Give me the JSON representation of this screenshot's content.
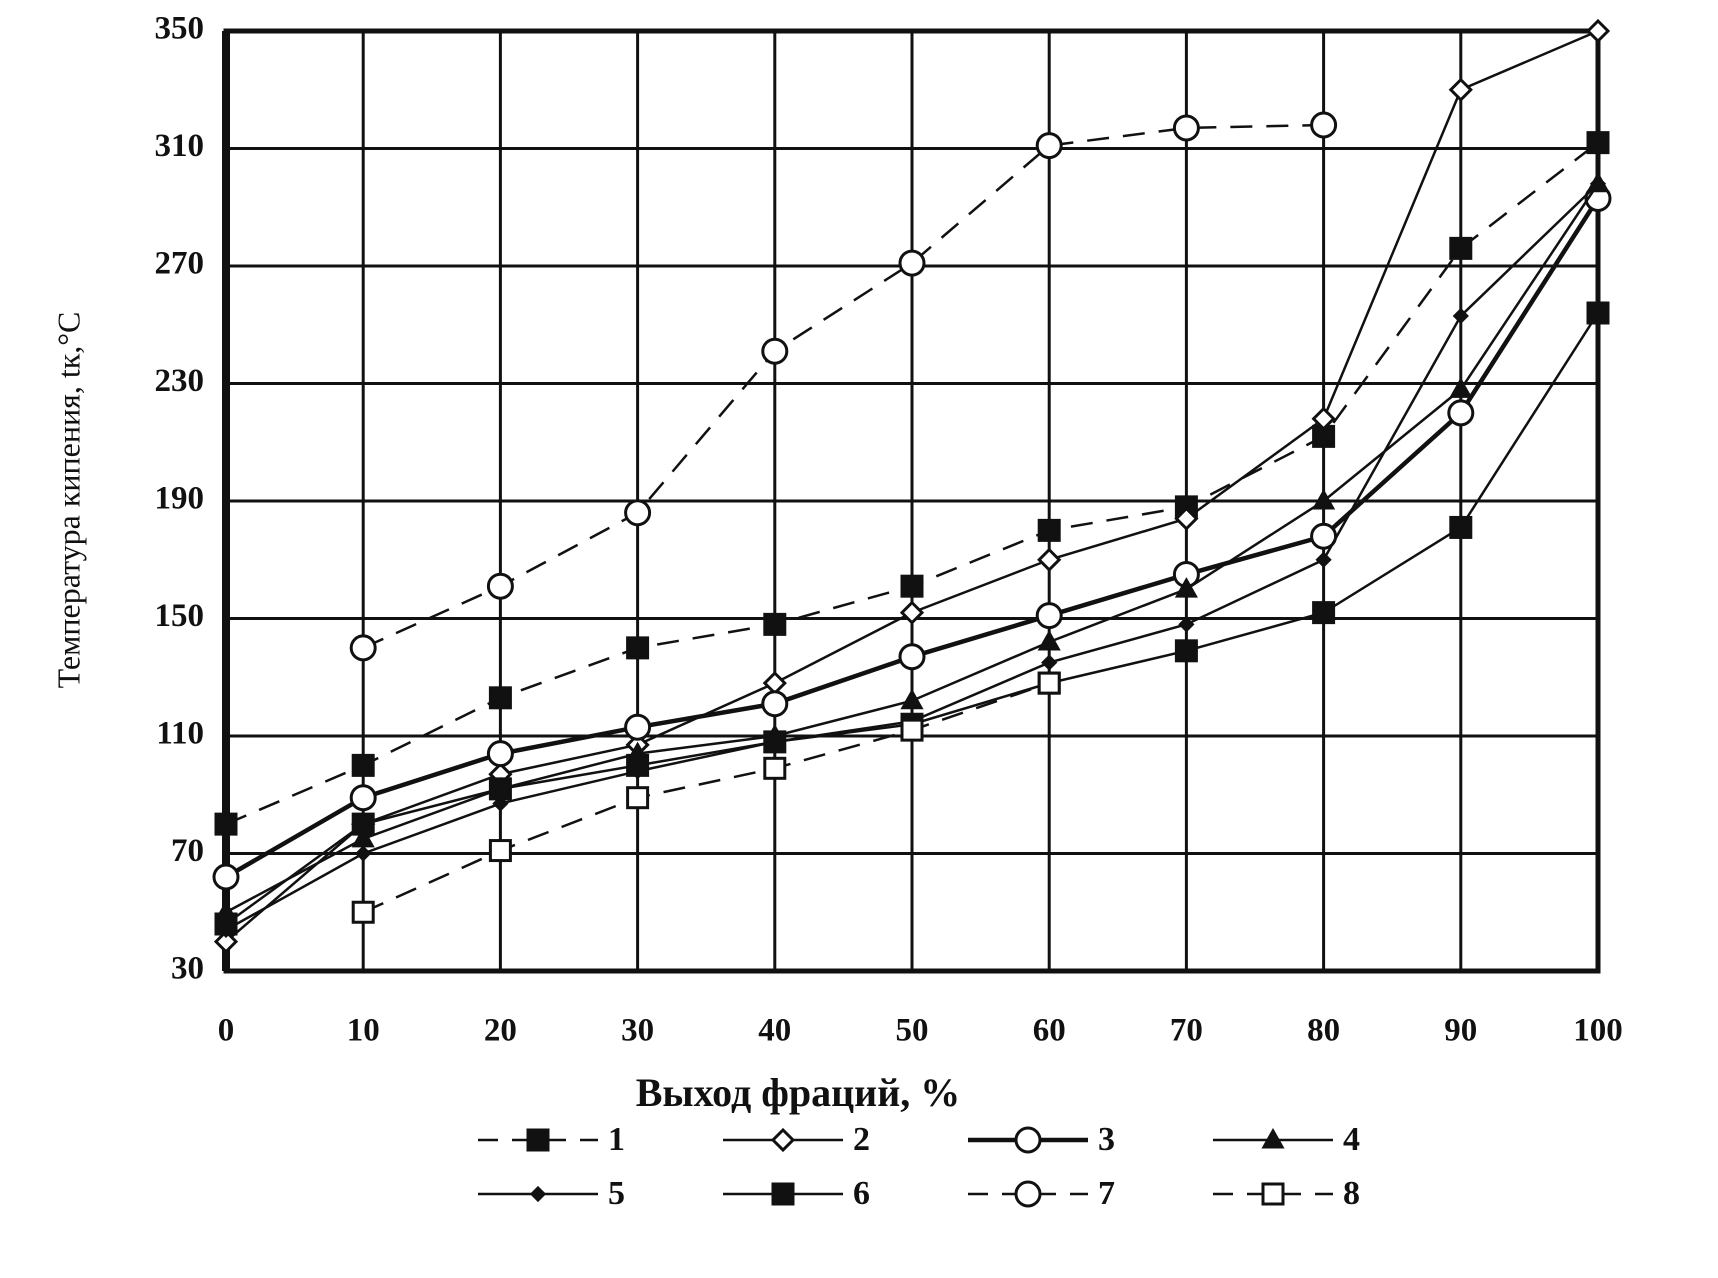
{
  "chart_data": {
    "type": "line",
    "xlabel": "Выход фраций, %",
    "ylabel": "Температура кипения, tк,°C",
    "x": [
      0,
      10,
      20,
      30,
      40,
      50,
      60,
      70,
      80,
      90,
      100
    ],
    "xlim": [
      0,
      100
    ],
    "xticks": [
      0,
      10,
      20,
      30,
      40,
      50,
      60,
      70,
      80,
      90,
      100
    ],
    "ylim": [
      30,
      350
    ],
    "yticks": [
      30,
      70,
      110,
      150,
      190,
      230,
      270,
      310,
      350
    ],
    "grid": true,
    "series": [
      {
        "name": "1",
        "color": "#111111",
        "line_style": "dashed",
        "marker": "square-filled",
        "values": [
          80,
          100,
          123,
          140,
          148,
          161,
          180,
          188,
          212,
          276,
          312
        ]
      },
      {
        "name": "2",
        "color": "#111111",
        "line_style": "solid",
        "marker": "diamond-open",
        "values": [
          40,
          80,
          97,
          107,
          128,
          152,
          170,
          184,
          218,
          330,
          350
        ]
      },
      {
        "name": "3",
        "color": "#111111",
        "line_style": "solid-thick",
        "marker": "circle-open",
        "values": [
          62,
          89,
          104,
          113,
          121,
          137,
          151,
          165,
          178,
          220,
          293
        ]
      },
      {
        "name": "4",
        "color": "#111111",
        "line_style": "solid",
        "marker": "triangle-filled",
        "values": [
          50,
          75,
          92,
          104,
          110,
          122,
          142,
          160,
          190,
          228,
          298
        ]
      },
      {
        "name": "5",
        "color": "#111111",
        "line_style": "solid",
        "marker": "diamond-filled",
        "values": [
          44,
          70,
          87,
          98,
          108,
          115,
          135,
          148,
          170,
          253,
          298
        ]
      },
      {
        "name": "6",
        "color": "#111111",
        "line_style": "solid",
        "marker": "square-filled",
        "values": [
          46,
          80,
          92,
          100,
          108,
          114,
          128,
          139,
          152,
          181,
          254
        ]
      },
      {
        "name": "7",
        "color": "#111111",
        "line_style": "dashed",
        "marker": "circle-open",
        "values": [
          null,
          140,
          161,
          186,
          241,
          271,
          311,
          317,
          318,
          null,
          null
        ]
      },
      {
        "name": "8",
        "color": "#111111",
        "line_style": "dashed",
        "marker": "square-open",
        "values": [
          null,
          50,
          71,
          89,
          99,
          112,
          128,
          null,
          null,
          null,
          null
        ]
      }
    ]
  }
}
